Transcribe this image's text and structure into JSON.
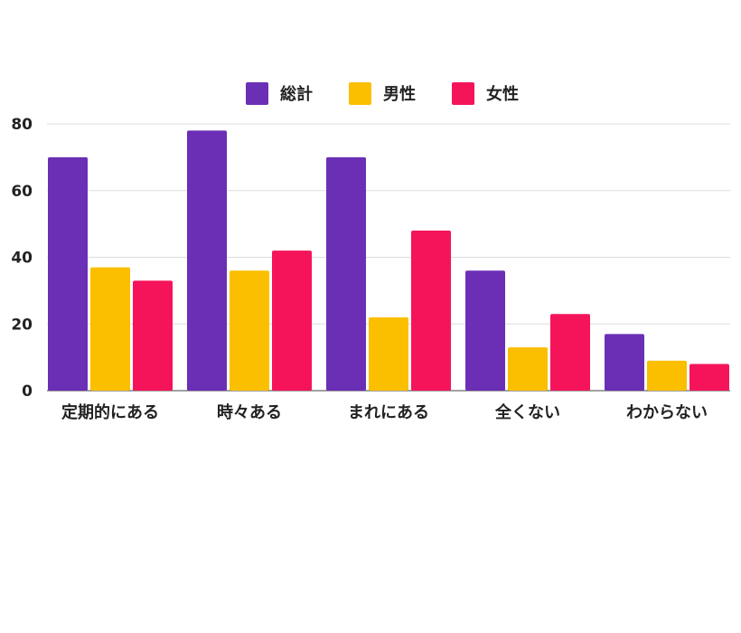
{
  "chart_data": {
    "type": "bar",
    "categories": [
      "定期的にある",
      "時々ある",
      "まれにある",
      "全くない",
      "わからない"
    ],
    "series": [
      {
        "name": "総計",
        "color": "#6a2fb5",
        "values": [
          70,
          78,
          70,
          36,
          17
        ]
      },
      {
        "name": "男性",
        "color": "#fbbf00",
        "values": [
          37,
          36,
          22,
          13,
          9
        ]
      },
      {
        "name": "女性",
        "color": "#f5145a",
        "values": [
          33,
          42,
          48,
          23,
          8
        ]
      }
    ],
    "ylim": [
      0,
      80
    ],
    "yticks": [
      "0",
      "20",
      "40",
      "60",
      "80"
    ],
    "grid": true,
    "legend": "top-center"
  }
}
